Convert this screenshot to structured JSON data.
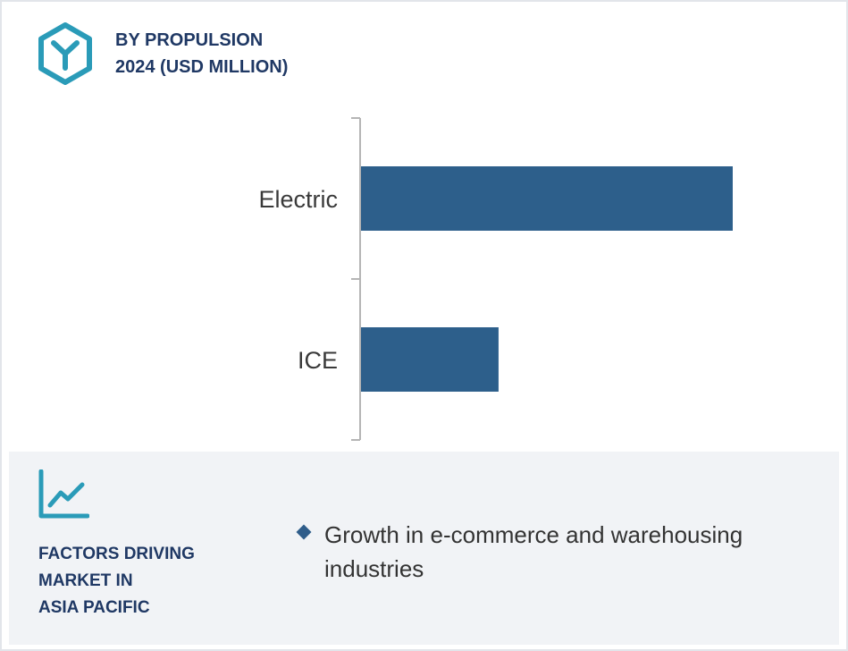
{
  "header": {
    "icon": "hexagon-y-logo-icon",
    "title_line1": "BY PROPULSION",
    "title_line2": "2024 (USD MILLION)"
  },
  "chart_data": {
    "type": "bar",
    "orientation": "horizontal",
    "categories": [
      "Electric",
      "ICE"
    ],
    "values": [
      100,
      37
    ],
    "value_axis_labeled": false,
    "grid": false,
    "bar_color": "#2d5f8b"
  },
  "factors": {
    "icon": "line-chart-icon",
    "title_lines": [
      "FACTORS DRIVING",
      "MARKET IN",
      "ASIA PACIFIC"
    ],
    "items": [
      "Growth in e-commerce and warehousing industries"
    ]
  },
  "colors": {
    "accent": "#2a9bb8",
    "heading": "#1f3864",
    "bar": "#2d5f8b",
    "panel": "#f1f3f6"
  }
}
